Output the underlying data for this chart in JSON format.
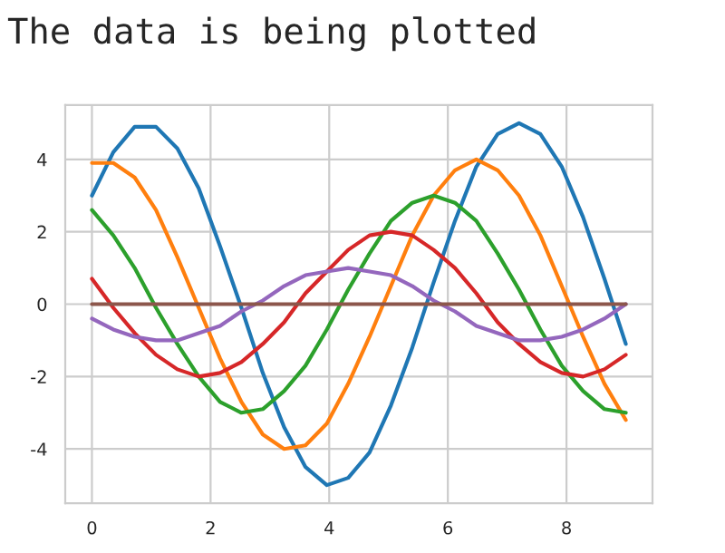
{
  "chart_data": {
    "type": "line",
    "title": "The data is being plotted",
    "x": [
      0,
      0.36,
      0.72,
      1.08,
      1.44,
      1.8,
      2.16,
      2.52,
      2.88,
      3.24,
      3.6,
      3.96,
      4.32,
      4.68,
      5.04,
      5.4,
      5.76,
      6.12,
      6.48,
      6.84,
      7.2,
      7.56,
      7.92,
      8.28,
      8.64,
      9.0
    ],
    "series": [
      {
        "color": "#1f77b4",
        "values": [
          3.0,
          4.2,
          4.9,
          4.9,
          4.3,
          3.2,
          1.6,
          -0.1,
          -1.9,
          -3.4,
          -4.5,
          -5.0,
          -4.8,
          -4.1,
          -2.8,
          -1.2,
          0.6,
          2.3,
          3.8,
          4.7,
          5.0,
          4.7,
          3.8,
          2.4,
          0.7,
          -1.1
        ]
      },
      {
        "color": "#ff7f0e",
        "values": [
          3.9,
          3.9,
          3.5,
          2.6,
          1.3,
          -0.1,
          -1.5,
          -2.7,
          -3.6,
          -4.0,
          -3.9,
          -3.3,
          -2.2,
          -0.9,
          0.5,
          1.9,
          3.0,
          3.7,
          4.0,
          3.7,
          3.0,
          1.9,
          0.5,
          -0.9,
          -2.2,
          -3.2
        ]
      },
      {
        "color": "#2ca02c",
        "values": [
          2.6,
          1.9,
          1.0,
          -0.1,
          -1.1,
          -2.0,
          -2.7,
          -3.0,
          -2.9,
          -2.4,
          -1.7,
          -0.7,
          0.4,
          1.4,
          2.3,
          2.8,
          3.0,
          2.8,
          2.3,
          1.4,
          0.4,
          -0.7,
          -1.7,
          -2.4,
          -2.9,
          -3.0
        ]
      },
      {
        "color": "#d62728",
        "values": [
          0.7,
          -0.1,
          -0.8,
          -1.4,
          -1.8,
          -2.0,
          -1.9,
          -1.6,
          -1.1,
          -0.5,
          0.3,
          0.9,
          1.5,
          1.9,
          2.0,
          1.9,
          1.5,
          1.0,
          0.3,
          -0.5,
          -1.1,
          -1.6,
          -1.9,
          -2.0,
          -1.8,
          -1.4
        ]
      },
      {
        "color": "#9467bd",
        "values": [
          -0.4,
          -0.7,
          -0.9,
          -1.0,
          -1.0,
          -0.8,
          -0.6,
          -0.2,
          0.1,
          0.5,
          0.8,
          0.9,
          1.0,
          0.9,
          0.8,
          0.5,
          0.1,
          -0.2,
          -0.6,
          -0.8,
          -1.0,
          -1.0,
          -0.9,
          -0.7,
          -0.4,
          0.0
        ]
      },
      {
        "color": "#8c564b",
        "values": [
          0,
          0,
          0,
          0,
          0,
          0,
          0,
          0,
          0,
          0,
          0,
          0,
          0,
          0,
          0,
          0,
          0,
          0,
          0,
          0,
          0,
          0,
          0,
          0,
          0,
          0
        ]
      }
    ],
    "xlim": [
      -0.45,
      9.45
    ],
    "ylim": [
      -5.5,
      5.5
    ],
    "xticks": [
      0,
      2,
      4,
      6,
      8
    ],
    "yticks": [
      -4,
      -2,
      0,
      2,
      4
    ],
    "grid": true,
    "marker": "none",
    "line_style": "solid"
  }
}
